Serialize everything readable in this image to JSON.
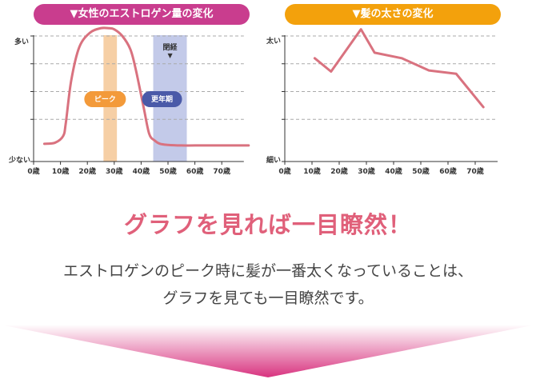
{
  "colors": {
    "left_header": "#c93d8e",
    "right_header": "#f3a10c",
    "line": "#d9727f",
    "peak_band": "#f6cfa5",
    "menopause_band": "#c3cae9",
    "peak_badge": "#f39a3a",
    "menopause_badge": "#4a5aa8",
    "headline": "#e0607a",
    "arrow_top": "#ffffff",
    "arrow_bottom": "#d8337f"
  },
  "left_chart": {
    "header": "▼女性のエストロゲン量の変化",
    "ylabel_top": "多い",
    "ylabel_bottom": "少ない",
    "peak_label": "ピーク",
    "menopause_label": "更年期",
    "closing_label": "閉経",
    "closing_marker": "▼"
  },
  "right_chart": {
    "header": "▼髪の太さの変化",
    "ylabel_top": "太い",
    "ylabel_bottom": "細い"
  },
  "headline": "グラフを見れば一目瞭然！",
  "body_line1": "エストロゲンのピーク時に髪が一番太くなっていることは、",
  "body_line2": "グラフを見ても一目瞭然です。",
  "chart_data": [
    {
      "type": "line",
      "title": "▼女性のエストロゲン量の変化",
      "xlabel": "",
      "ylabel": "",
      "x_tick_labels": [
        "0歳",
        "10歳",
        "20歳",
        "30歳",
        "40歳",
        "50歳",
        "60歳",
        "70歳"
      ],
      "x_ticks": [
        0,
        10,
        20,
        30,
        40,
        50,
        60,
        70
      ],
      "xlim": [
        0,
        80
      ],
      "ylim": [
        0,
        100
      ],
      "y_ticks": [
        0,
        25,
        50,
        75,
        100
      ],
      "y_tick_labels": {
        "100": "多い",
        "0": "少ない"
      },
      "grid": "horizontal dashed",
      "x": [
        4,
        8,
        11,
        12,
        14,
        17,
        21,
        25,
        28,
        30,
        33,
        36,
        38,
        41,
        43,
        45,
        47,
        50,
        55,
        60,
        70,
        80
      ],
      "y": [
        3,
        4,
        10,
        22,
        60,
        90,
        103,
        107,
        107,
        106,
        100,
        88,
        70,
        35,
        12,
        6,
        3,
        2,
        1.5,
        1.5,
        1.5,
        1.5
      ],
      "bands": [
        {
          "label": "ピーク",
          "from": 26,
          "to": 31
        },
        {
          "label": "更年期",
          "from": 44.5,
          "to": 57,
          "marker": "閉経"
        }
      ]
    },
    {
      "type": "line",
      "title": "▼髪の太さの変化",
      "xlabel": "",
      "ylabel": "",
      "x_tick_labels": [
        "0歳",
        "10歳",
        "20歳",
        "30歳",
        "40歳",
        "50歳",
        "60歳",
        "70歳"
      ],
      "x_ticks": [
        0,
        10,
        20,
        30,
        40,
        50,
        60,
        70
      ],
      "xlim": [
        0,
        80
      ],
      "ylim": [
        0,
        100
      ],
      "y_ticks": [
        0,
        25,
        50,
        75,
        100
      ],
      "y_tick_labels": {
        "100": "太い",
        "0": "細い"
      },
      "grid": "horizontal dashed",
      "x": [
        11,
        17,
        28,
        33,
        43,
        53,
        63,
        73
      ],
      "y": [
        80,
        68,
        106,
        85,
        80,
        69,
        66,
        36
      ]
    }
  ]
}
